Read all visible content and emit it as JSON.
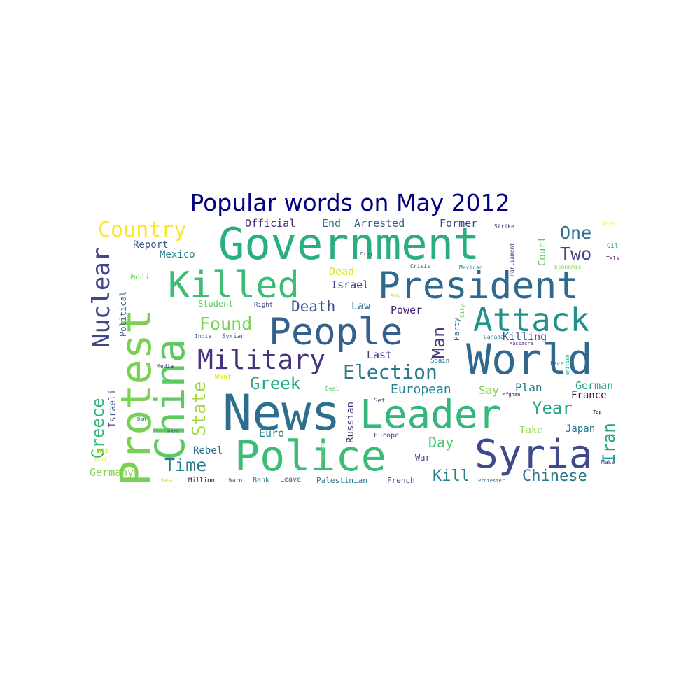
{
  "title": "Popular words on May 2012",
  "title_color": "#000080",
  "words": [
    {
      "text": "News",
      "color": "#2d6e8e"
    },
    {
      "text": "Police",
      "color": "#3cbc75"
    },
    {
      "text": "Government",
      "color": "#29af7f"
    },
    {
      "text": "Protest",
      "color": "#7ad151"
    },
    {
      "text": "China",
      "color": "#5ec962"
    },
    {
      "text": "President",
      "color": "#31688e"
    },
    {
      "text": "People",
      "color": "#355f8d"
    },
    {
      "text": "World",
      "color": "#31688e"
    },
    {
      "text": "Leader",
      "color": "#35b779"
    },
    {
      "text": "Syria",
      "color": "#3e4a89"
    },
    {
      "text": "Killed",
      "color": "#3dbc74"
    },
    {
      "text": "Attack",
      "color": "#21918c"
    },
    {
      "text": "Military",
      "color": "#46327e"
    },
    {
      "text": "Nuclear",
      "color": "#3e4989"
    },
    {
      "text": "Country",
      "color": "#fde725"
    },
    {
      "text": "Election",
      "color": "#2a788e"
    },
    {
      "text": "Greece",
      "color": "#35b779"
    },
    {
      "text": "Iran",
      "color": "#20a386"
    },
    {
      "text": "State",
      "color": "#a2da37"
    },
    {
      "text": "Found",
      "color": "#7ad151"
    },
    {
      "text": "Man",
      "color": "#433e85"
    },
    {
      "text": "Greek",
      "color": "#22a884"
    },
    {
      "text": "Year",
      "color": "#22a884"
    },
    {
      "text": "Time",
      "color": "#287d8e"
    },
    {
      "text": "Death",
      "color": "#3b528b"
    },
    {
      "text": "One",
      "color": "#2c728e"
    },
    {
      "text": "Two",
      "color": "#404688"
    },
    {
      "text": "Chinese",
      "color": "#2a788e"
    },
    {
      "text": "Kill",
      "color": "#277f8e"
    },
    {
      "text": "European",
      "color": "#25848e"
    },
    {
      "text": "Day",
      "color": "#4ac16d"
    },
    {
      "text": "Official",
      "color": "#482878"
    },
    {
      "text": "End",
      "color": "#2c728e"
    },
    {
      "text": "Arrested",
      "color": "#33638d"
    },
    {
      "text": "Former",
      "color": "#414487"
    },
    {
      "text": "Report",
      "color": "#38588c"
    },
    {
      "text": "Mexico",
      "color": "#287c8e"
    },
    {
      "text": "Dead",
      "color": "#d8e219"
    },
    {
      "text": "Israel",
      "color": "#424086"
    },
    {
      "text": "Law",
      "color": "#31688e"
    },
    {
      "text": "Power",
      "color": "#482374"
    },
    {
      "text": "Last",
      "color": "#46327e"
    },
    {
      "text": "Killing",
      "color": "#3b528b"
    },
    {
      "text": "Say",
      "color": "#7ad151"
    },
    {
      "text": "Plan",
      "color": "#287d8e"
    },
    {
      "text": "German",
      "color": "#1fa187"
    },
    {
      "text": "France",
      "color": "#440154"
    },
    {
      "text": "Japan",
      "color": "#2a788e"
    },
    {
      "text": "Take",
      "color": "#8fd744"
    },
    {
      "text": "Germany",
      "color": "#86d549"
    },
    {
      "text": "Rebel",
      "color": "#2d708e"
    },
    {
      "text": "Euro",
      "color": "#23898e"
    },
    {
      "text": "Court",
      "color": "#5ec962"
    },
    {
      "text": "Russian",
      "color": "#472c7a"
    },
    {
      "text": "Israeli",
      "color": "#3e4c8a"
    },
    {
      "text": "Political",
      "color": "#31688e"
    },
    {
      "text": "Student",
      "color": "#5ec962"
    },
    {
      "text": "Right",
      "color": "#404688"
    },
    {
      "text": "Want",
      "color": "#d8e219"
    },
    {
      "text": "War",
      "color": "#433e85"
    },
    {
      "text": "Party",
      "color": "#2e6f8e"
    },
    {
      "text": "Palestinian",
      "color": "#287c8e"
    },
    {
      "text": "Bank",
      "color": "#2a788e"
    },
    {
      "text": "Million",
      "color": "#440154"
    },
    {
      "text": "Leave",
      "color": "#3a538b"
    },
    {
      "text": "French",
      "color": "#414487"
    },
    {
      "text": "Europe",
      "color": "#3b528b"
    },
    {
      "text": "Set",
      "color": "#3e4a89"
    },
    {
      "text": "Spain",
      "color": "#2c728e"
    },
    {
      "text": "Public",
      "color": "#6ccd5a"
    },
    {
      "text": "Media",
      "color": "#443983"
    },
    {
      "text": "India",
      "color": "#2d708e"
    },
    {
      "text": "Syrian",
      "color": "#33638d"
    },
    {
      "text": "Crisis",
      "color": "#3b528b"
    },
    {
      "text": "Mexican",
      "color": "#23888e"
    },
    {
      "text": "Economic",
      "color": "#7ad151"
    },
    {
      "text": "Parliament",
      "color": "#3e4989"
    },
    {
      "text": "Strike",
      "color": "#482475"
    },
    {
      "text": "Vote",
      "color": "#fde725"
    },
    {
      "text": "Oil",
      "color": "#1f988b"
    },
    {
      "text": "Talk",
      "color": "#440154"
    },
    {
      "text": "Drug",
      "color": "#3b528b"
    },
    {
      "text": "City",
      "color": "#5ec962"
    },
    {
      "text": "Canada",
      "color": "#2c728e"
    },
    {
      "text": "Massacre",
      "color": "#482475"
    },
    {
      "text": "British",
      "color": "#22a884"
    },
    {
      "text": "Face",
      "color": "#3b528b"
    },
    {
      "text": "Top",
      "color": "#440154"
    },
    {
      "text": "Make",
      "color": "#433e85"
    },
    {
      "text": "Deal",
      "color": "#5ec962"
    },
    {
      "text": "Afghan",
      "color": "#440154"
    },
    {
      "text": "Women",
      "color": "#7ad151"
    },
    {
      "text": "Army",
      "color": "#b5de2b"
    },
    {
      "text": "Ban",
      "color": "#2e6e8e"
    },
    {
      "text": "Part",
      "color": "#3b528b"
    },
    {
      "text": "Hit",
      "color": "#b5de2b"
    },
    {
      "text": "Find",
      "color": "#d8e219"
    },
    {
      "text": "Near",
      "color": "#d8e219"
    },
    {
      "text": "Warn",
      "color": "#3b528b"
    },
    {
      "text": "Protester",
      "color": "#2c728e"
    }
  ]
}
